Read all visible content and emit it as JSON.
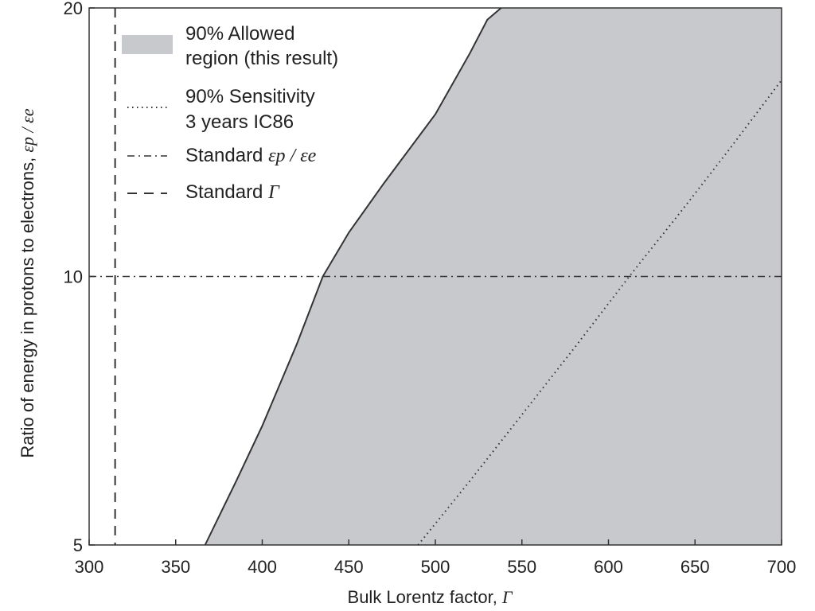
{
  "chart_data": {
    "type": "line",
    "xlabel": "Bulk Lorentz factor, ",
    "xlabel_symbol": "Γ",
    "ylabel": "Ratio of energy in protons to electrons, ",
    "ylabel_symbol": "εp / εe",
    "xlim": [
      300,
      700
    ],
    "ylim": [
      5,
      20
    ],
    "yscale": "log",
    "xticks": [
      "300",
      "350",
      "400",
      "450",
      "500",
      "550",
      "600",
      "650",
      "700"
    ],
    "yticks": [
      "5",
      "10",
      "20"
    ],
    "grid": false,
    "legend_position": "top-left",
    "allowed_region_boundary": {
      "x": [
        367,
        385,
        400,
        420,
        435,
        450,
        470,
        500,
        520,
        530,
        538
      ],
      "y": [
        5.0,
        5.9,
        6.8,
        8.4,
        10.0,
        11.2,
        12.7,
        15.2,
        17.8,
        19.4,
        20.0
      ]
    },
    "series": [
      {
        "name": "90% Allowed region (this result)",
        "legend_lines": [
          "90% Allowed",
          "region (this result)"
        ],
        "style": "filled-area",
        "color": "#c8c9cc",
        "edge_color": "#333333"
      },
      {
        "name": "90% Sensitivity 3 years IC86",
        "legend_lines": [
          "90% Sensitivity",
          "3 years IC86"
        ],
        "style": "dotted",
        "color": "#333333",
        "x": [
          490,
          520,
          550,
          580,
          612,
          640,
          670,
          700
        ],
        "y": [
          5.0,
          5.9,
          7.0,
          8.3,
          10.0,
          11.7,
          13.9,
          16.6
        ]
      },
      {
        "name": "Standard εp / εe",
        "legend_lines": [
          "Standard "
        ],
        "legend_symbol": "εp / εe",
        "style": "dashdot",
        "color": "#333333",
        "y_value": 10
      },
      {
        "name": "Standard Γ",
        "legend_lines": [
          "Standard "
        ],
        "legend_symbol": "Γ",
        "style": "dashed",
        "color": "#333333",
        "x_value": 315
      }
    ]
  }
}
